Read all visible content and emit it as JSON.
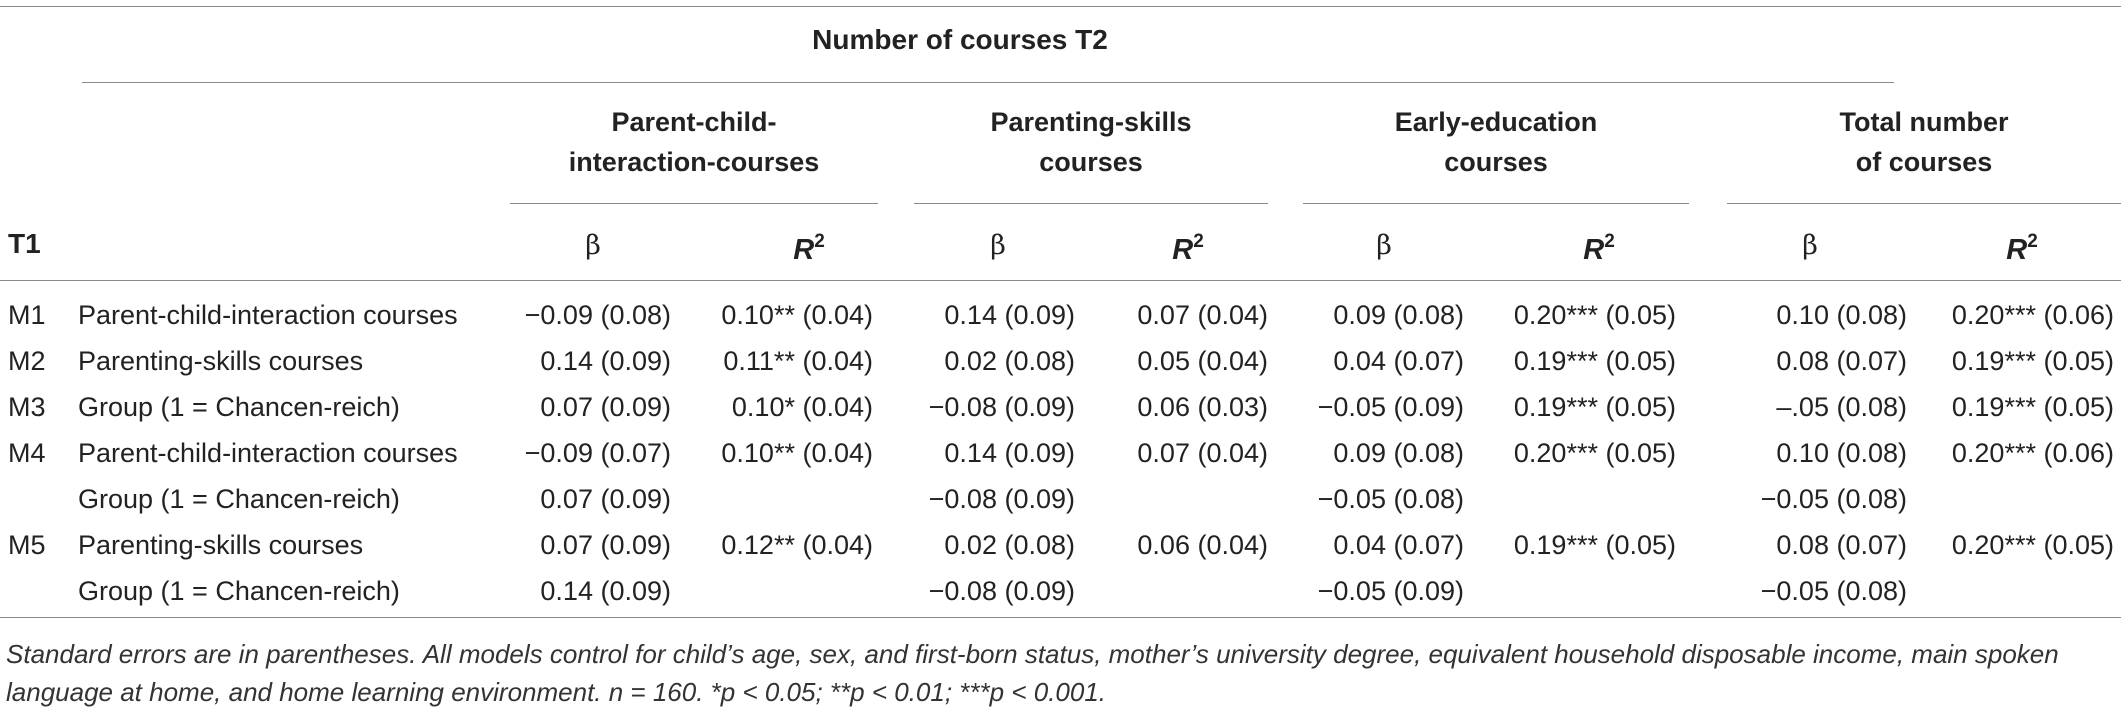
{
  "table": {
    "spanning_header": "Number of courses T2",
    "group_headers": [
      "Parent-child-\ninteraction-courses",
      "Parenting-skills\ncourses",
      "Early-education\ncourses",
      "Total number\nof courses"
    ],
    "row_header": "T1",
    "beta_label": "β",
    "r2_label": "R",
    "r2_sup": "2",
    "rows": [
      {
        "model": "M1",
        "predictor": "Parent-child-interaction courses",
        "cells": [
          "−0.09 (0.08)",
          "0.10** (0.04)",
          "0.14 (0.09)",
          "0.07 (0.04)",
          "0.09 (0.08)",
          "0.20*** (0.05)",
          "0.10 (0.08)",
          "0.20*** (0.06)"
        ]
      },
      {
        "model": "M2",
        "predictor": "Parenting-skills courses",
        "cells": [
          "0.14 (0.09)",
          "0.11** (0.04)",
          "0.02 (0.08)",
          "0.05 (0.04)",
          "0.04 (0.07)",
          "0.19*** (0.05)",
          "0.08 (0.07)",
          "0.19*** (0.05)"
        ]
      },
      {
        "model": "M3",
        "predictor": "Group (1 = Chancen-reich)",
        "cells": [
          "0.07 (0.09)",
          "0.10* (0.04)",
          "−0.08 (0.09)",
          "0.06 (0.03)",
          "−0.05 (0.09)",
          "0.19*** (0.05)",
          "–.05 (0.08)",
          "0.19*** (0.05)"
        ]
      },
      {
        "model": "M4",
        "predictor": "Parent-child-interaction courses",
        "cells": [
          "−0.09 (0.07)",
          "0.10** (0.04)",
          "0.14 (0.09)",
          "0.07 (0.04)",
          "0.09 (0.08)",
          "0.20*** (0.05)",
          "0.10 (0.08)",
          "0.20*** (0.06)"
        ]
      },
      {
        "model": "",
        "predictor": "Group (1 = Chancen-reich)",
        "cells": [
          "0.07 (0.09)",
          "",
          "−0.08 (0.09)",
          "",
          "−0.05 (0.08)",
          "",
          "−0.05 (0.08)",
          ""
        ]
      },
      {
        "model": "M5",
        "predictor": "Parenting-skills courses",
        "cells": [
          "0.07 (0.09)",
          "0.12** (0.04)",
          "0.02 (0.08)",
          "0.06 (0.04)",
          "0.04 (0.07)",
          "0.19*** (0.05)",
          "0.08 (0.07)",
          "0.20*** (0.05)"
        ]
      },
      {
        "model": "",
        "predictor": "Group (1 = Chancen-reich)",
        "cells": [
          "0.14 (0.09)",
          "",
          "−0.08 (0.09)",
          "",
          "−0.05 (0.09)",
          "",
          "−0.05 (0.08)",
          ""
        ]
      }
    ],
    "footnote": "Standard errors are in parentheses. All models control for child’s age, sex, and first-born status, mother’s university degree, equivalent household disposable income, main spoken language at home, and home learning environment. n = 160. *p < 0.05; **p < 0.01; ***p < 0.001."
  }
}
